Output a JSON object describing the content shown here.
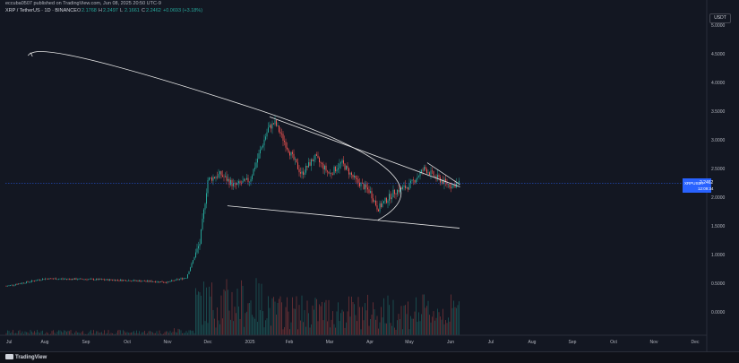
{
  "header": {
    "publisher_line": "eccuba0507 published on TradingView.com, Jun 08, 2025 20:50 UTC-9",
    "symbol_line": "XRP / TetherUS · 1D · BINANCE",
    "ohlc": [
      {
        "key": "O",
        "value": "2.1768"
      },
      {
        "key": "H",
        "value": "2.2497"
      },
      {
        "key": "L",
        "value": "2.1661"
      },
      {
        "key": "C",
        "value": "2.2462"
      },
      {
        "key": "",
        "value": "+0.0693 (+3.18%)"
      }
    ]
  },
  "currency_button": "USDT",
  "price_tag": {
    "symbol": "XRPUSDT",
    "value": "2.2462",
    "countdown": "12:09:34"
  },
  "footer": {
    "brand": "TradingView"
  },
  "colors": {
    "background": "#131722",
    "up": "#26a69a",
    "down": "#ef5350",
    "lines": "#e6e6e6",
    "price_line": "#2962ff"
  },
  "chart_data": {
    "type": "candlestick",
    "title": "XRP / TetherUS · 1D · BINANCE",
    "xlabel": "",
    "ylabel": "",
    "y_axis_labels": [
      "5.0000",
      "4.5000",
      "4.0000",
      "3.5000",
      "3.0000",
      "2.5000",
      "2.0000",
      "1.5000",
      "1.0000",
      "0.5000",
      "0.0000"
    ],
    "x_axis_labels": [
      "Jul",
      "Aug",
      "Sep",
      "Oct",
      "Nov",
      "Dec",
      "2025",
      "Feb",
      "Mar",
      "Apr",
      "May",
      "Jun",
      "Jul",
      "Aug",
      "Sep",
      "Oct",
      "Nov",
      "Dec"
    ],
    "ylim": [
      -0.35,
      5.05
    ],
    "grid": false,
    "last_price": 2.2462,
    "price_path": [
      [
        "Jul",
        0.45
      ],
      [
        "Aug",
        0.58
      ],
      [
        "Sep",
        0.57
      ],
      [
        "Oct",
        0.55
      ],
      [
        "Nov",
        0.52
      ],
      [
        "Nov 15",
        0.6
      ],
      [
        "Nov 25",
        1.2
      ],
      [
        "Dec",
        2.3
      ],
      [
        "Dec 10",
        2.4
      ],
      [
        "Dec 20",
        2.2
      ],
      [
        "2025",
        2.3
      ],
      [
        "Jan 15",
        3.2
      ],
      [
        "Jan 20",
        3.3
      ],
      [
        "Feb",
        2.8
      ],
      [
        "Feb 10",
        2.4
      ],
      [
        "Feb 20",
        2.7
      ],
      [
        "Mar",
        2.4
      ],
      [
        "Mar 10",
        2.6
      ],
      [
        "Mar 20",
        2.3
      ],
      [
        "Apr",
        2.1
      ],
      [
        "Apr 7",
        1.8
      ],
      [
        "Apr 20",
        2.1
      ],
      [
        "May",
        2.2
      ],
      [
        "May 12",
        2.5
      ],
      [
        "May 20",
        2.35
      ],
      [
        "Jun",
        2.2
      ],
      [
        "Jun 8",
        2.2462
      ]
    ],
    "annotations": [
      {
        "kind": "trendline",
        "name": "upper-resistance",
        "from": [
          "Jan 16",
          3.4
        ],
        "to": [
          "Jun 8",
          2.18
        ]
      },
      {
        "kind": "trendline",
        "name": "lower-support",
        "from": [
          "Dec 15",
          1.85
        ],
        "to": [
          "Jun 8",
          1.46
        ]
      },
      {
        "kind": "trendline",
        "name": "short-resistance",
        "from": [
          "May 14",
          2.6
        ],
        "to": [
          "Jun 8",
          2.22
        ]
      },
      {
        "kind": "curve-arrow",
        "name": "projection",
        "from": [
          "Apr 7",
          1.6
        ],
        "via": [
          "Jun 8",
          2.3
        ],
        "to": [
          "Jul 20",
          4.5
        ]
      }
    ]
  }
}
